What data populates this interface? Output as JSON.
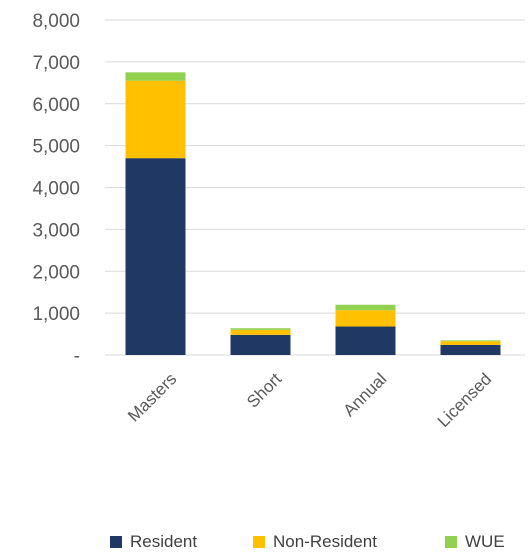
{
  "chart_data": {
    "type": "bar",
    "stacked": true,
    "categories": [
      "Masters",
      "Short",
      "Annual",
      "Licensed"
    ],
    "series": [
      {
        "name": "Resident",
        "color": "#1f3864",
        "values": [
          4700,
          480,
          680,
          240
        ]
      },
      {
        "name": "Non-Resident",
        "color": "#ffc000",
        "values": [
          1850,
          120,
          390,
          90
        ]
      },
      {
        "name": "WUE",
        "color": "#92d050",
        "values": [
          200,
          40,
          130,
          20
        ]
      }
    ],
    "ylim": [
      0,
      8000
    ],
    "yticks": [
      "-",
      "1,000",
      "2,000",
      "3,000",
      "4,000",
      "5,000",
      "6,000",
      "7,000",
      "8,000"
    ],
    "grid": true,
    "legend": "bottom",
    "title": "",
    "xlabel": "",
    "ylabel": ""
  }
}
